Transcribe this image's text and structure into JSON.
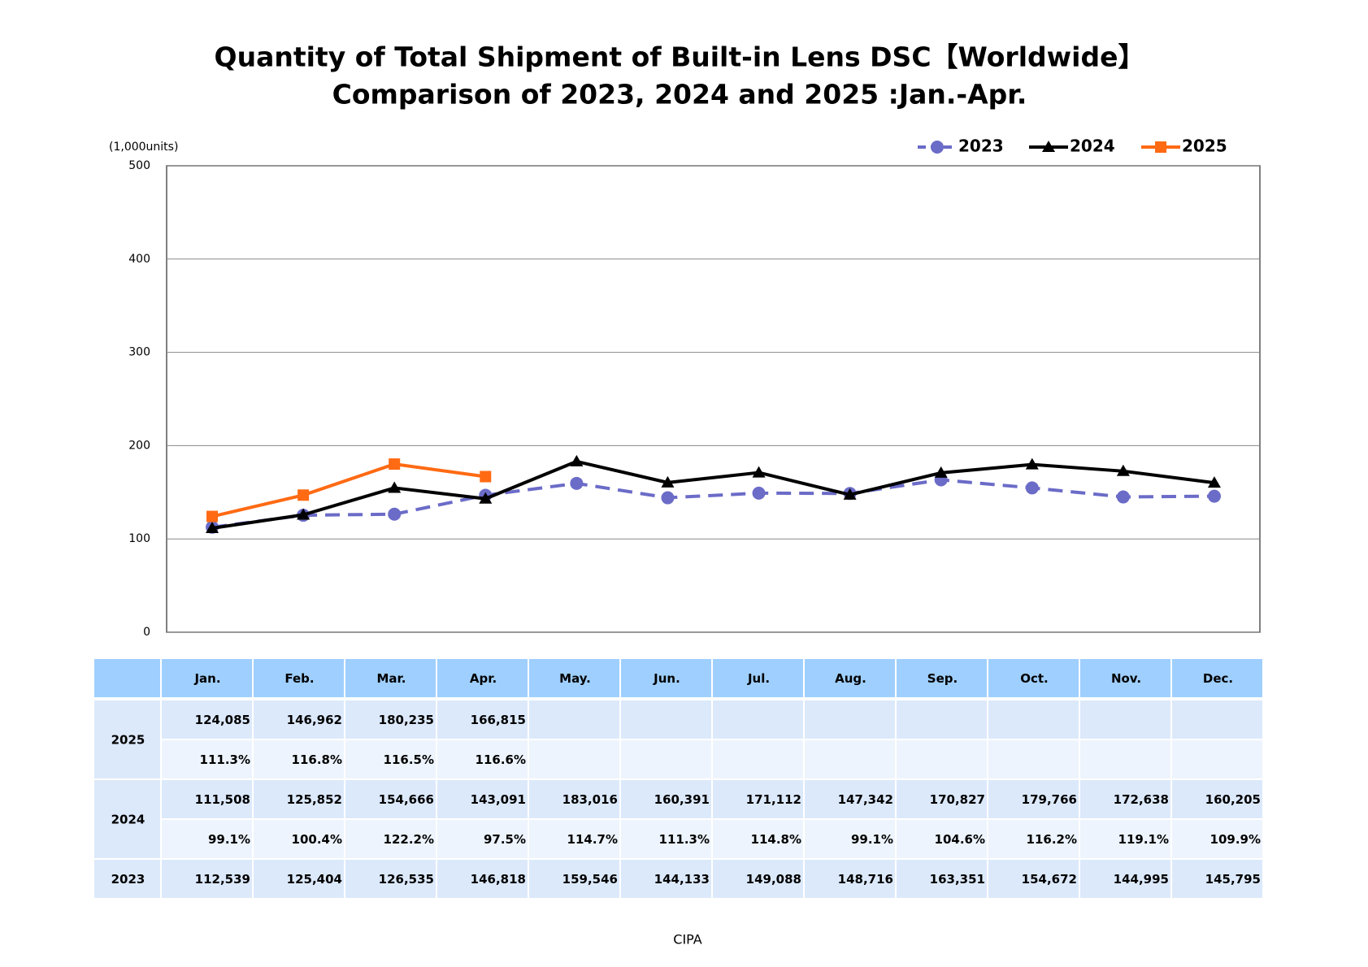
{
  "chart_data": {
    "type": "line",
    "title": "Quantity of Total Shipment of Built-in Lens DSC【Worldwide】",
    "subtitle": "Comparison of 2023, 2024 and 2025 :Jan.-Apr.",
    "y_label": "(1,000units)",
    "source": "CIPA",
    "categories": [
      "Jan.",
      "Feb.",
      "Mar.",
      "Apr.",
      "May.",
      "Jun.",
      "Jul.",
      "Aug.",
      "Sep.",
      "Oct.",
      "Nov.",
      "Dec."
    ],
    "ylim": [
      0,
      500
    ],
    "yticks": [
      0,
      100,
      200,
      300,
      400,
      500
    ],
    "grid": true,
    "legend": "top-right",
    "series": [
      {
        "name": "2023",
        "color": "#6b6bc8",
        "marker": "circle",
        "dashed": true,
        "values": [
          112.539,
          125.404,
          126.535,
          146.818,
          159.546,
          144.133,
          149.088,
          148.716,
          163.351,
          154.672,
          144.995,
          145.795
        ],
        "value_labels": [
          "112,539",
          "125,404",
          "126,535",
          "146,818",
          "159,546",
          "144,133",
          "149,088",
          "148,716",
          "163,351",
          "154,672",
          "144,995",
          "145,795"
        ]
      },
      {
        "name": "2024",
        "color": "#000000",
        "marker": "triangle",
        "dashed": false,
        "values": [
          111.508,
          125.852,
          154.666,
          143.091,
          183.016,
          160.391,
          171.112,
          147.342,
          170.827,
          179.766,
          172.638,
          160.205
        ],
        "value_labels": [
          "111,508",
          "125,852",
          "154,666",
          "143,091",
          "183,016",
          "160,391",
          "171,112",
          "147,342",
          "170,827",
          "179,766",
          "172,638",
          "160,205"
        ],
        "yoy": [
          "99.1%",
          "100.4%",
          "122.2%",
          "97.5%",
          "114.7%",
          "111.3%",
          "114.8%",
          "99.1%",
          "104.6%",
          "116.2%",
          "119.1%",
          "109.9%"
        ]
      },
      {
        "name": "2025",
        "color": "#ff6a13",
        "marker": "square",
        "dashed": false,
        "values": [
          124.085,
          146.962,
          180.235,
          166.815,
          null,
          null,
          null,
          null,
          null,
          null,
          null,
          null
        ],
        "value_labels": [
          "124,085",
          "146,962",
          "180,235",
          "166,815",
          null,
          null,
          null,
          null,
          null,
          null,
          null,
          null
        ],
        "yoy": [
          "111.3%",
          "116.8%",
          "116.5%",
          "116.6%",
          null,
          null,
          null,
          null,
          null,
          null,
          null,
          null
        ]
      }
    ]
  }
}
